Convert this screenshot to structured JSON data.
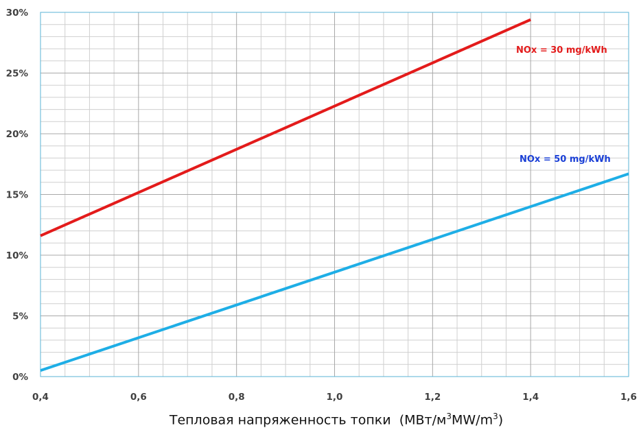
{
  "chart_data": {
    "type": "line",
    "title": "",
    "xlabel": {
      "text_ru": "Тепловая напряженность топки",
      "open": "(",
      "unit_ru": "МВт/м",
      "unit_en": "MW/m",
      "exponent": "3",
      "close": ")"
    },
    "ylabel": "",
    "xlim": [
      0.4,
      1.6
    ],
    "ylim": [
      0,
      30
    ],
    "x_ticks": [
      "0,4",
      "0,6",
      "0,8",
      "1,0",
      "1,2",
      "1,4",
      "1,6"
    ],
    "y_ticks": [
      "0%",
      "5%",
      "10%",
      "15%",
      "20%",
      "25%",
      "30%"
    ],
    "grid": true,
    "series": [
      {
        "name": "NOx = 30 mg/kWh",
        "color": "#e31b1b",
        "x": [
          0.4,
          1.4
        ],
        "y": [
          11.6,
          29.4
        ]
      },
      {
        "name": "NOx = 50 mg/kWh",
        "color": "#1eaee6",
        "x": [
          0.4,
          1.6
        ],
        "y": [
          0.5,
          16.7
        ]
      }
    ]
  }
}
